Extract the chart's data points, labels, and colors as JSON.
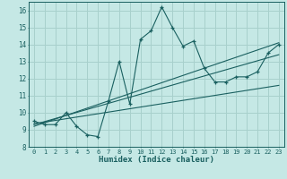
{
  "xlabel": "Humidex (Indice chaleur)",
  "bg_color": "#c5e8e5",
  "grid_color": "#a8d0cc",
  "line_color": "#1a6060",
  "xlim": [
    -0.5,
    23.5
  ],
  "ylim": [
    8.0,
    16.5
  ],
  "xticks": [
    0,
    1,
    2,
    3,
    4,
    5,
    6,
    7,
    8,
    9,
    10,
    11,
    12,
    13,
    14,
    15,
    16,
    17,
    18,
    19,
    20,
    21,
    22,
    23
  ],
  "yticks": [
    8,
    9,
    10,
    11,
    12,
    13,
    14,
    15,
    16
  ],
  "main_x": [
    0,
    1,
    2,
    3,
    4,
    5,
    6,
    7,
    8,
    9,
    10,
    11,
    12,
    13,
    14,
    15,
    16,
    17,
    18,
    19,
    20,
    21,
    22,
    23
  ],
  "main_y": [
    9.5,
    9.3,
    9.3,
    10.0,
    9.2,
    8.7,
    8.6,
    10.7,
    13.0,
    10.5,
    14.3,
    14.8,
    16.2,
    15.0,
    13.9,
    14.2,
    12.6,
    11.8,
    11.8,
    12.1,
    12.1,
    12.4,
    13.5,
    14.0
  ],
  "line1_x": [
    0,
    23
  ],
  "line1_y": [
    9.35,
    11.6
  ],
  "line2_x": [
    0,
    23
  ],
  "line2_y": [
    9.3,
    13.4
  ],
  "line3_x": [
    0,
    23
  ],
  "line3_y": [
    9.2,
    14.1
  ]
}
